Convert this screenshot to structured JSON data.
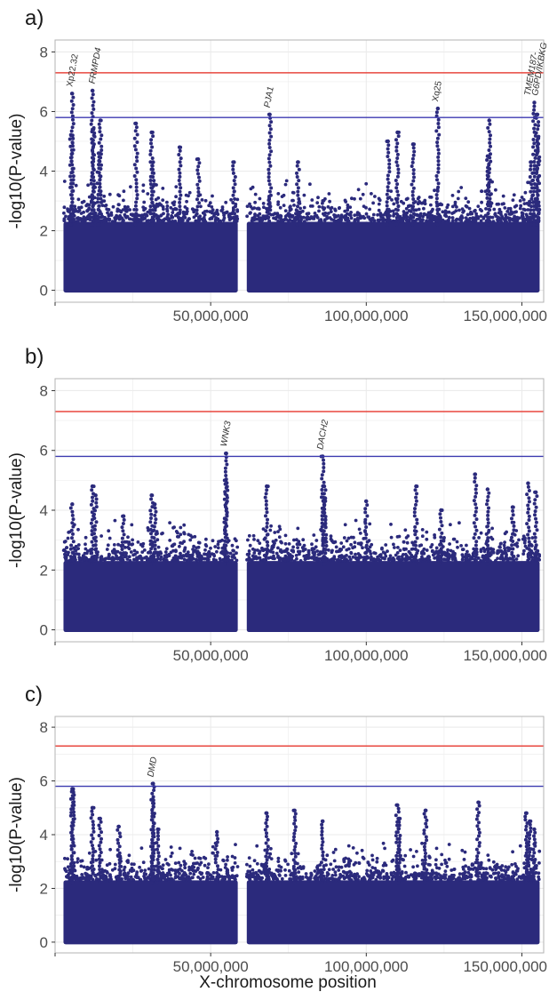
{
  "figure": {
    "xlabel": "X-chromosome position"
  },
  "colors": {
    "points": "#2b2a7c",
    "red_line": "#e8473f",
    "blue_line": "#3c3ab0",
    "grid": "#ebebeb",
    "panel_border": "#b3b3b3"
  },
  "chart_data": [
    {
      "panel_label": "a)",
      "type": "scatter",
      "title": "",
      "xlabel": "X-chromosome position",
      "ylabel": "-log10(P-value)",
      "xlim": [
        0,
        157000000
      ],
      "ylim": [
        -0.4,
        8.4
      ],
      "x_ticks": [
        50000000,
        100000000,
        150000000
      ],
      "x_tick_labels": [
        "50,000,000",
        "100,000,000",
        "150,000,000"
      ],
      "y_ticks": [
        0,
        2,
        4,
        6,
        8
      ],
      "y_tick_labels": [
        "0",
        "2",
        "4",
        "6",
        "8"
      ],
      "grid": true,
      "hlines": [
        {
          "y": 7.3,
          "color": "red"
        },
        {
          "y": 5.8,
          "color": "blue"
        }
      ],
      "dense_ranges": [
        {
          "x_start": 2700000,
          "x_end": 58700000,
          "y_max": 2.3
        },
        {
          "x_start": 61600000,
          "x_end": 155700000,
          "y_max": 2.3
        }
      ],
      "peaks": [
        {
          "x": 5500000,
          "y": 6.6
        },
        {
          "x": 5200000,
          "y": 5.2
        },
        {
          "x": 12000000,
          "y": 6.7
        },
        {
          "x": 12300000,
          "y": 5.4
        },
        {
          "x": 14500000,
          "y": 5.7
        },
        {
          "x": 14000000,
          "y": 4.6
        },
        {
          "x": 26000000,
          "y": 5.6
        },
        {
          "x": 31000000,
          "y": 5.3
        },
        {
          "x": 31500000,
          "y": 4.3
        },
        {
          "x": 40000000,
          "y": 4.8
        },
        {
          "x": 46000000,
          "y": 4.4
        },
        {
          "x": 57500000,
          "y": 4.3
        },
        {
          "x": 69000000,
          "y": 5.9
        },
        {
          "x": 78000000,
          "y": 4.3
        },
        {
          "x": 107000000,
          "y": 5.0
        },
        {
          "x": 110000000,
          "y": 5.3
        },
        {
          "x": 115000000,
          "y": 4.9
        },
        {
          "x": 123000000,
          "y": 6.1
        },
        {
          "x": 139500000,
          "y": 5.7
        },
        {
          "x": 139000000,
          "y": 4.5
        },
        {
          "x": 154000000,
          "y": 6.3
        },
        {
          "x": 155000000,
          "y": 5.9
        },
        {
          "x": 155200000,
          "y": 5.1
        },
        {
          "x": 153000000,
          "y": 4.3
        }
      ],
      "annotations": [
        {
          "label": "Xp22.32",
          "x": 5500000,
          "y": 6.7
        },
        {
          "label": "FRMPD4",
          "x": 12700000,
          "y": 6.8
        },
        {
          "label": "PJA1",
          "x": 69000000,
          "y": 6.0
        },
        {
          "label": "Xq25",
          "x": 123000000,
          "y": 6.2
        },
        {
          "label": "TMEM187-",
          "x": 152600000,
          "y": 6.4
        },
        {
          "label": "G6PD/IKBKG",
          "x": 155000000,
          "y": 6.4
        }
      ]
    },
    {
      "panel_label": "b)",
      "type": "scatter",
      "title": "",
      "xlabel": "X-chromosome position",
      "ylabel": "-log10(P-value)",
      "xlim": [
        0,
        157000000
      ],
      "ylim": [
        -0.4,
        8.4
      ],
      "x_ticks": [
        50000000,
        100000000,
        150000000
      ],
      "x_tick_labels": [
        "50,000,000",
        "100,000,000",
        "150,000,000"
      ],
      "y_ticks": [
        0,
        2,
        4,
        6,
        8
      ],
      "y_tick_labels": [
        "0",
        "2",
        "4",
        "6",
        "8"
      ],
      "grid": true,
      "hlines": [
        {
          "y": 7.3,
          "color": "red"
        },
        {
          "y": 5.8,
          "color": "blue"
        }
      ],
      "dense_ranges": [
        {
          "x_start": 2700000,
          "x_end": 58700000,
          "y_max": 2.3
        },
        {
          "x_start": 61600000,
          "x_end": 155700000,
          "y_max": 2.3
        }
      ],
      "peaks": [
        {
          "x": 5500000,
          "y": 4.2
        },
        {
          "x": 12000000,
          "y": 4.8
        },
        {
          "x": 13000000,
          "y": 4.5
        },
        {
          "x": 22000000,
          "y": 3.8
        },
        {
          "x": 31000000,
          "y": 4.5
        },
        {
          "x": 32000000,
          "y": 4.2
        },
        {
          "x": 55000000,
          "y": 5.9
        },
        {
          "x": 54800000,
          "y": 5.0
        },
        {
          "x": 68000000,
          "y": 4.8
        },
        {
          "x": 86000000,
          "y": 5.8
        },
        {
          "x": 86500000,
          "y": 4.8
        },
        {
          "x": 86800000,
          "y": 4.4
        },
        {
          "x": 100000000,
          "y": 4.3
        },
        {
          "x": 116000000,
          "y": 4.8
        },
        {
          "x": 124000000,
          "y": 4.0
        },
        {
          "x": 135000000,
          "y": 5.2
        },
        {
          "x": 139000000,
          "y": 4.7
        },
        {
          "x": 147000000,
          "y": 4.1
        },
        {
          "x": 152000000,
          "y": 4.9
        },
        {
          "x": 154500000,
          "y": 4.6
        }
      ],
      "annotations": [
        {
          "label": "WNK3",
          "x": 55000000,
          "y": 6.0
        },
        {
          "label": "DACH2",
          "x": 86000000,
          "y": 5.9
        }
      ]
    },
    {
      "panel_label": "c)",
      "type": "scatter",
      "title": "",
      "xlabel": "X-chromosome position",
      "ylabel": "-log10(P-value)",
      "xlim": [
        0,
        157000000
      ],
      "ylim": [
        -0.4,
        8.4
      ],
      "x_ticks": [
        50000000,
        100000000,
        150000000
      ],
      "x_tick_labels": [
        "50,000,000",
        "100,000,000",
        "150,000,000"
      ],
      "y_ticks": [
        0,
        2,
        4,
        6,
        8
      ],
      "y_tick_labels": [
        "0",
        "2",
        "4",
        "6",
        "8"
      ],
      "grid": true,
      "hlines": [
        {
          "y": 7.3,
          "color": "red"
        },
        {
          "y": 5.8,
          "color": "blue"
        }
      ],
      "dense_ranges": [
        {
          "x_start": 2700000,
          "x_end": 58700000,
          "y_max": 2.3
        },
        {
          "x_start": 61600000,
          "x_end": 155700000,
          "y_max": 2.3
        }
      ],
      "peaks": [
        {
          "x": 5500000,
          "y": 5.7
        },
        {
          "x": 5800000,
          "y": 5.6
        },
        {
          "x": 12000000,
          "y": 5.0
        },
        {
          "x": 14500000,
          "y": 4.6
        },
        {
          "x": 20500000,
          "y": 4.3
        },
        {
          "x": 31500000,
          "y": 5.9
        },
        {
          "x": 31200000,
          "y": 5.3
        },
        {
          "x": 33000000,
          "y": 4.2
        },
        {
          "x": 52000000,
          "y": 4.1
        },
        {
          "x": 68000000,
          "y": 4.8
        },
        {
          "x": 77000000,
          "y": 4.9
        },
        {
          "x": 86000000,
          "y": 4.5
        },
        {
          "x": 110000000,
          "y": 5.1
        },
        {
          "x": 110500000,
          "y": 4.6
        },
        {
          "x": 119000000,
          "y": 4.9
        },
        {
          "x": 136000000,
          "y": 5.2
        },
        {
          "x": 151500000,
          "y": 4.8
        },
        {
          "x": 152500000,
          "y": 4.5
        },
        {
          "x": 154000000,
          "y": 4.2
        }
      ],
      "annotations": [
        {
          "label": "DMD",
          "x": 31500000,
          "y": 6.0
        }
      ]
    }
  ]
}
